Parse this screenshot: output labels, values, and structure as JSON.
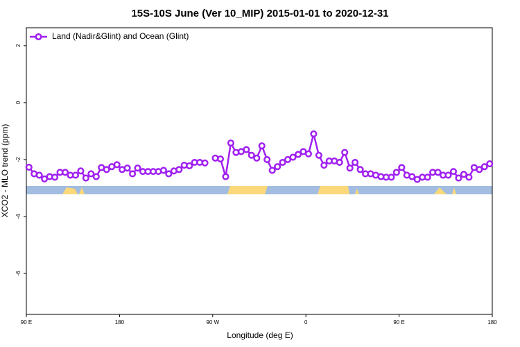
{
  "chart_data": {
    "type": "line",
    "title": "15S-10S June (Ver 10_MIP)   2015-01-01 to 2020-12-31",
    "x_label": "Longitude (deg E)",
    "y_label": "XCO2 - MLO trend (ppm)",
    "xlim": [
      90,
      540
    ],
    "ylim": [
      -7.44,
      2.63
    ],
    "xticks": [
      {
        "value": 90,
        "label": "90 E"
      },
      {
        "value": 180,
        "label": "180"
      },
      {
        "value": 270,
        "label": "90 W"
      },
      {
        "value": 360,
        "label": "0"
      },
      {
        "value": 450,
        "label": "90 E"
      },
      {
        "value": 540,
        "label": "180"
      }
    ],
    "yticks": [
      2,
      0,
      -2,
      -4,
      -6
    ],
    "legend": "top-left",
    "series": [
      {
        "name": "Land (Nadir&Glint) and Ocean (Glint)",
        "color": "#a020f0",
        "x": [
          92.5,
          97.5,
          102.5,
          107.5,
          112.5,
          117.5,
          122.5,
          127.5,
          132.5,
          137.5,
          142.5,
          147.5,
          152.5,
          157.5,
          162.5,
          167.5,
          172.5,
          177.5,
          182.5,
          187.5,
          192.5,
          197.5,
          202.5,
          207.5,
          212.5,
          217.5,
          222.5,
          227.5,
          232.5,
          237.5,
          242.5,
          247.5,
          252.5,
          257.5,
          262.5,
          267.5,
          272.5,
          277.5,
          282.5,
          287.5,
          292.5,
          297.5,
          302.5,
          307.5,
          312.5,
          317.5,
          322.5,
          327.5,
          332.5,
          337.5,
          342.5,
          347.5,
          352.5,
          357.5,
          362.5,
          367.5,
          372.5,
          377.5,
          382.5,
          387.5,
          392.5,
          397.5,
          402.5,
          407.5,
          412.5,
          417.5,
          422.5,
          427.5,
          432.5,
          437.5,
          442.5,
          447.5,
          452.5,
          457.5,
          462.5,
          467.5,
          472.5,
          477.5,
          482.5,
          487.5,
          492.5,
          497.5,
          502.5,
          507.5,
          512.5,
          517.5,
          522.5,
          527.5,
          532.5,
          537.5
        ],
        "values": [
          -2.27,
          -2.5,
          -2.55,
          -2.68,
          -2.6,
          -2.62,
          -2.45,
          -2.45,
          -2.55,
          -2.55,
          -2.4,
          -2.65,
          -2.5,
          -2.6,
          -2.28,
          -2.35,
          -2.25,
          -2.18,
          -2.35,
          -2.3,
          -2.5,
          -2.3,
          -2.42,
          -2.42,
          -2.42,
          -2.42,
          -2.38,
          -2.5,
          -2.4,
          -2.35,
          -2.2,
          -2.22,
          -2.1,
          -2.1,
          -2.12,
          null,
          -1.95,
          -1.98,
          -2.6,
          -1.42,
          -1.75,
          -1.72,
          -1.65,
          -1.85,
          -1.95,
          -1.52,
          -2.0,
          -2.38,
          -2.25,
          -2.1,
          -2.0,
          -1.92,
          -1.82,
          -1.72,
          -1.8,
          -1.1,
          -1.85,
          -2.2,
          -2.05,
          -2.05,
          -2.1,
          -1.75,
          -2.3,
          -2.1,
          -2.35,
          -2.5,
          -2.5,
          -2.55,
          -2.6,
          -2.62,
          -2.62,
          -2.45,
          -2.28,
          -2.55,
          -2.6,
          -2.7,
          -2.62,
          -2.62,
          -2.45,
          -2.45,
          -2.55,
          -2.55,
          -2.42,
          -2.65,
          -2.52,
          -2.62,
          -2.28,
          -2.35,
          -2.25,
          -2.15
        ]
      }
    ]
  }
}
